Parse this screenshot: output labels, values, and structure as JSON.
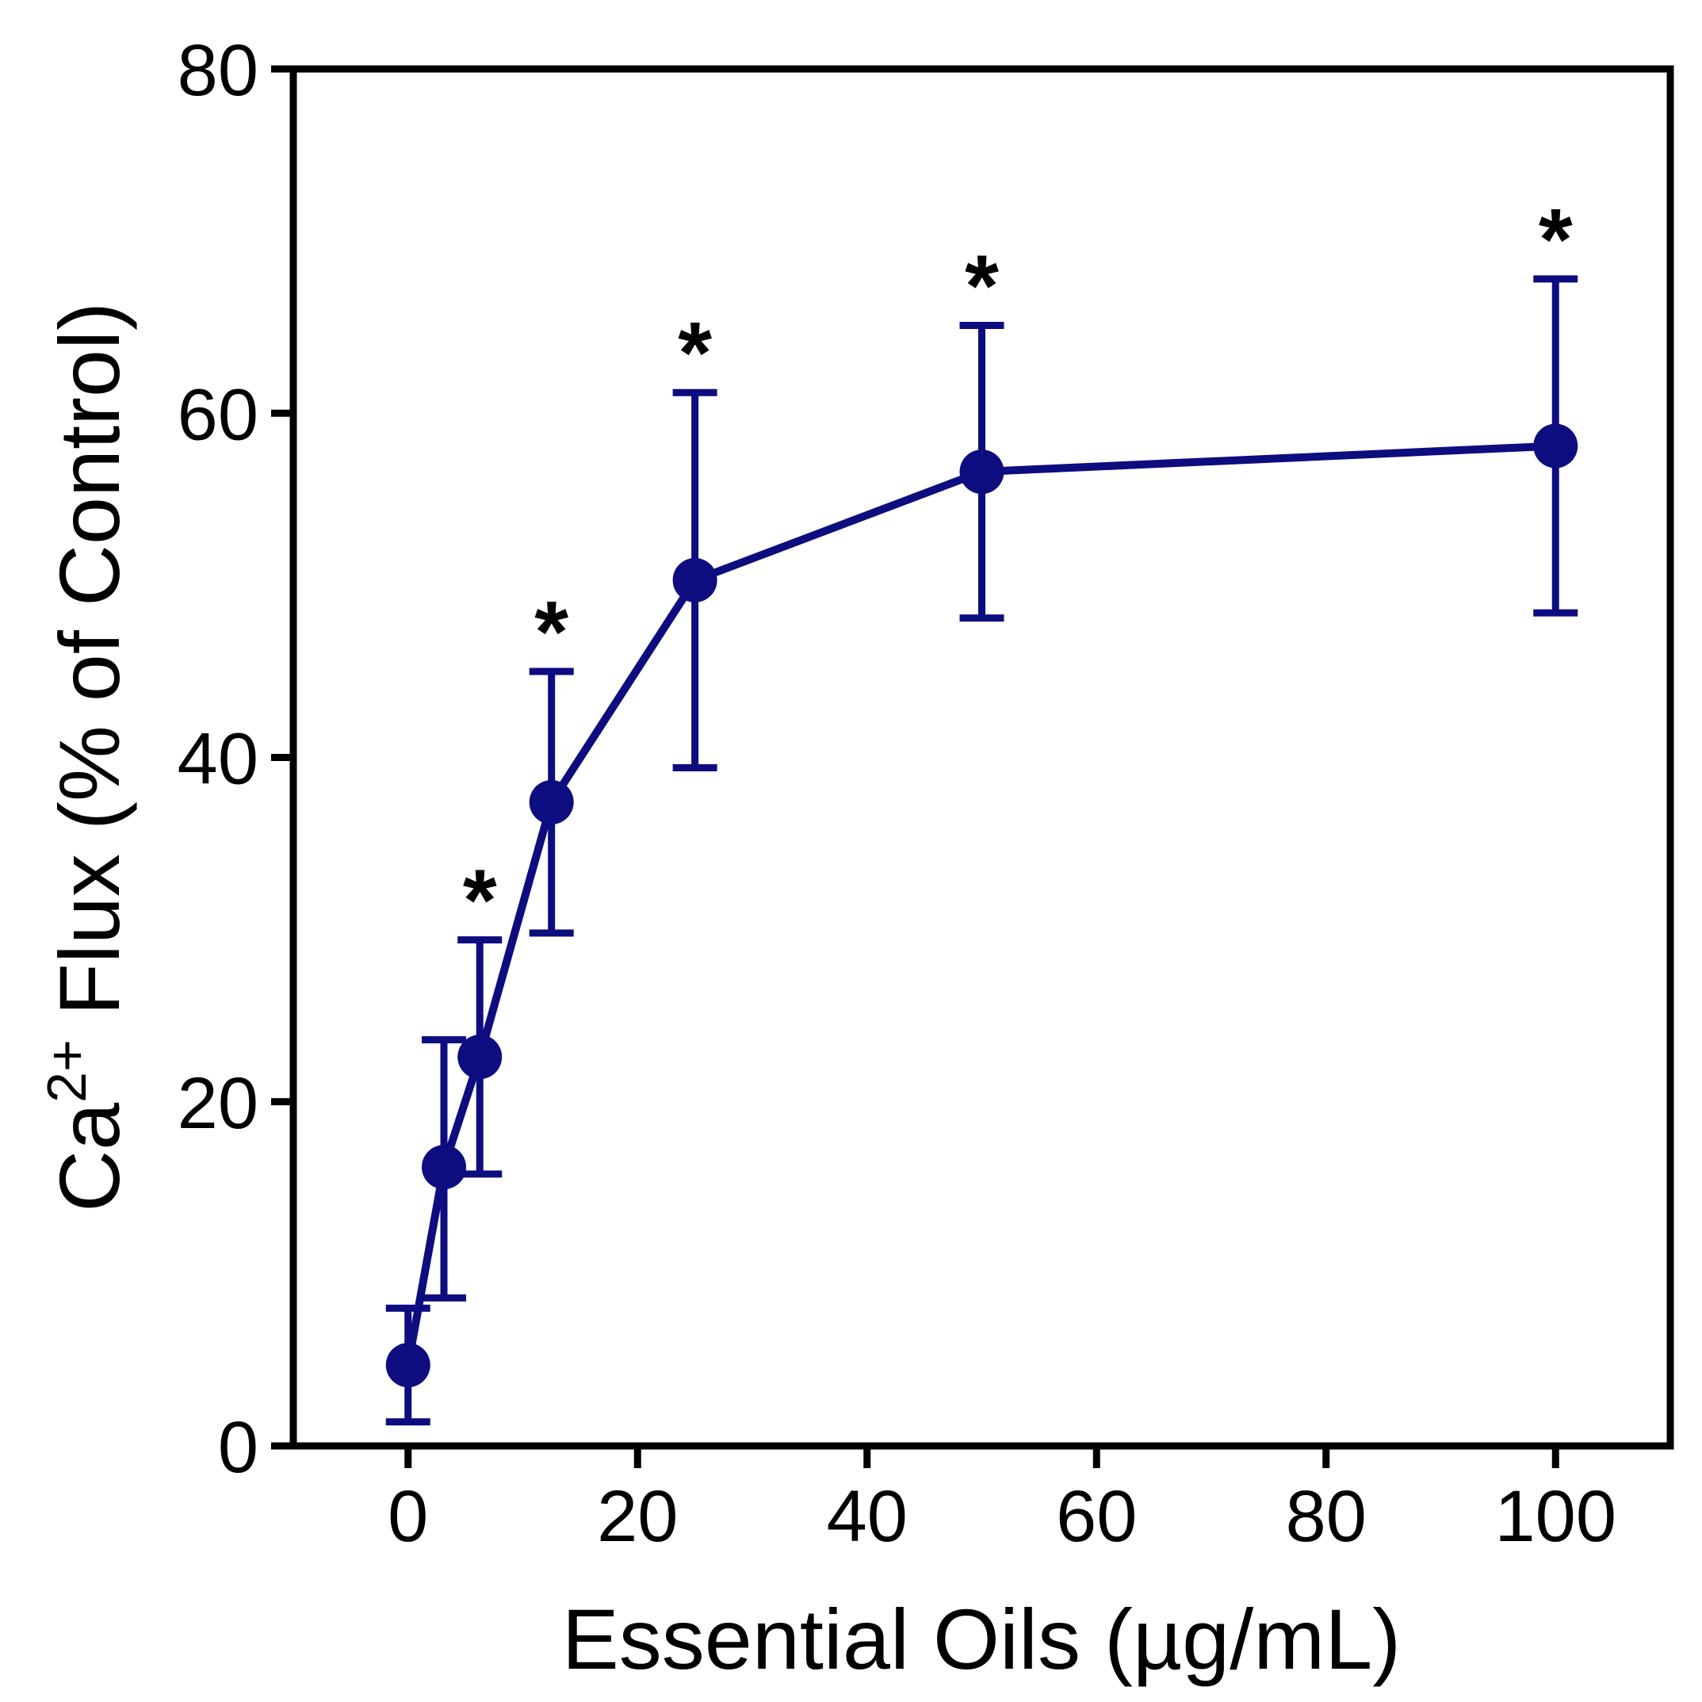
{
  "chart_data": {
    "type": "line",
    "title": "",
    "xlabel": "Essential Oils (µg/mL)",
    "ylabel_parts": {
      "base": "Ca",
      "superscript": "2+",
      "rest": " Flux (% of Control)"
    },
    "xlim": [
      -10,
      110
    ],
    "ylim": [
      0,
      80
    ],
    "xticks": [
      0,
      20,
      40,
      60,
      80,
      100
    ],
    "yticks": [
      0,
      20,
      40,
      60,
      80
    ],
    "grid": false,
    "legend": "none",
    "series": [
      {
        "name": "Essential Oils",
        "color": "#0d0d80",
        "points": [
          {
            "x": 0,
            "y": 4.7,
            "err_low": 3.3,
            "err_high": 3.3,
            "sig": ""
          },
          {
            "x": 3.125,
            "y": 16.2,
            "err_low": 7.6,
            "err_high": 7.4,
            "sig": ""
          },
          {
            "x": 6.25,
            "y": 22.6,
            "err_low": 6.8,
            "err_high": 6.8,
            "sig": "*"
          },
          {
            "x": 12.5,
            "y": 37.4,
            "err_low": 7.6,
            "err_high": 7.6,
            "sig": "*"
          },
          {
            "x": 25,
            "y": 50.3,
            "err_low": 10.9,
            "err_high": 10.9,
            "sig": "*"
          },
          {
            "x": 50,
            "y": 56.6,
            "err_low": 8.5,
            "err_high": 8.5,
            "sig": "*"
          },
          {
            "x": 100,
            "y": 58.1,
            "err_low": 9.7,
            "err_high": 9.7,
            "sig": "*"
          }
        ]
      }
    ]
  }
}
